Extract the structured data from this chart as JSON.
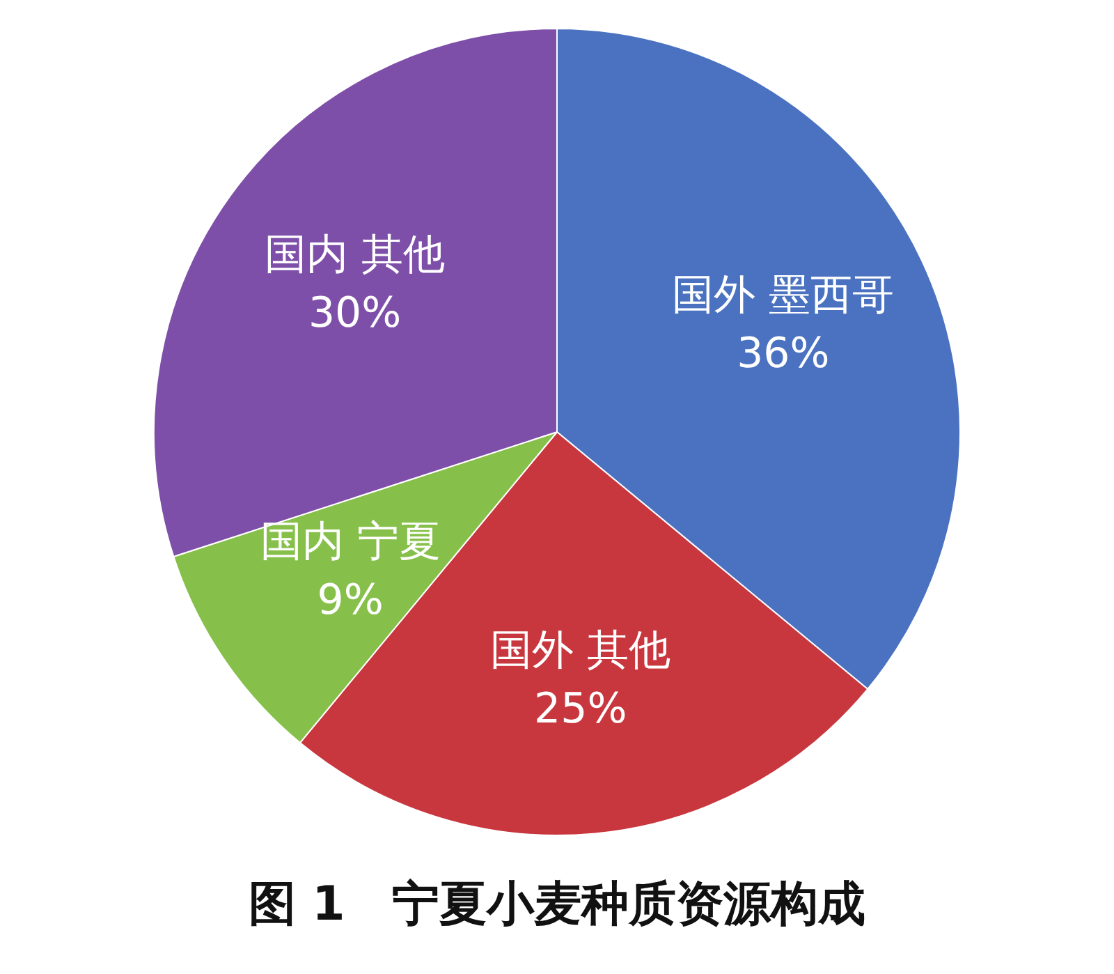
{
  "chart_data": {
    "type": "pie",
    "title": "图 1　宁夏小麦种质资源构成",
    "categories": [
      "国外 墨西哥",
      "国外 其他",
      "国内 宁夏",
      "国内 其他"
    ],
    "values": [
      36,
      25,
      9,
      30
    ],
    "colors": [
      "#4a72c0",
      "#c8363e",
      "#86c04a",
      "#7e4fa8"
    ],
    "value_labels": [
      "36%",
      "25%",
      "9%",
      "30%"
    ]
  }
}
